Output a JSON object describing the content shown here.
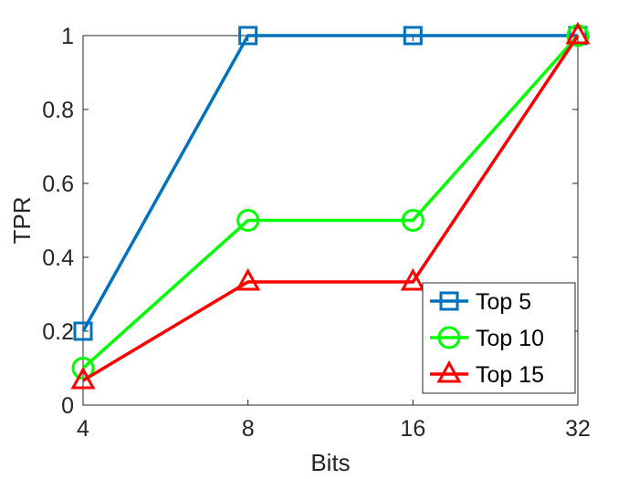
{
  "chart_data": {
    "type": "line",
    "title": "",
    "xlabel": "Bits",
    "ylabel": "TPR",
    "categories": [
      "4",
      "8",
      "16",
      "32"
    ],
    "ylim": [
      0,
      1
    ],
    "yticks": [
      "0",
      "0.2",
      "0.4",
      "0.6",
      "0.8",
      "1"
    ],
    "grid": false,
    "legend_position": "bottom-right",
    "series": [
      {
        "name": "Top 5",
        "values": [
          0.2,
          1.0,
          1.0,
          1.0
        ],
        "color": "#0072BD",
        "marker": "square"
      },
      {
        "name": "Top 10",
        "values": [
          0.1,
          0.5,
          0.5,
          1.0
        ],
        "color": "#00FF00",
        "marker": "circle"
      },
      {
        "name": "Top 15",
        "values": [
          0.0667,
          0.3333,
          0.3333,
          1.0
        ],
        "color": "#FF0000",
        "marker": "triangle"
      }
    ]
  }
}
